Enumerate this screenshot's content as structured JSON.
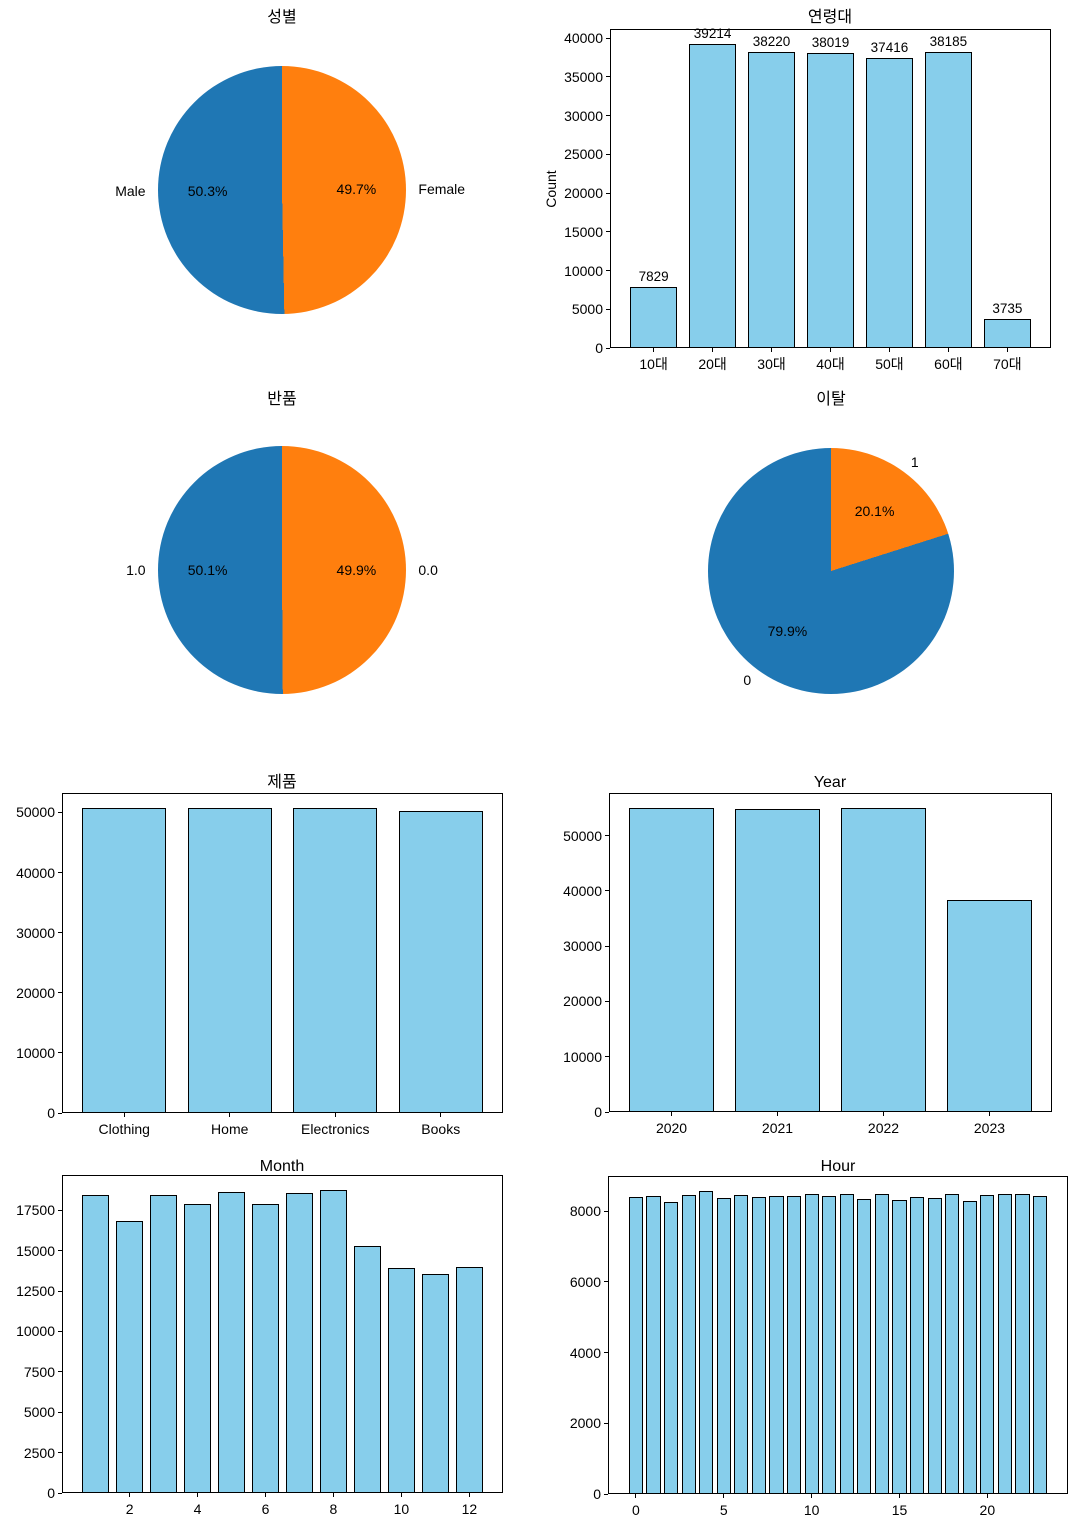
{
  "palette": {
    "blue": "#1f77b4",
    "orange": "#ff7f0e",
    "bar_fill": "#87ceeb",
    "edge": "#000000"
  },
  "chart_data": "see charts",
  "charts": [
    {
      "id": "gender",
      "type": "pie",
      "title": "성별",
      "slices": [
        {
          "label": "Male",
          "pct": 50.3
        },
        {
          "label": "Female",
          "pct": 49.7
        }
      ],
      "start_angle": 90,
      "direction": "counterclockwise"
    },
    {
      "id": "age",
      "type": "bar",
      "title": "연령대",
      "ylabel": "Count",
      "categories": [
        "10대",
        "20대",
        "30대",
        "40대",
        "50대",
        "60대",
        "70대"
      ],
      "values": [
        7829,
        39214,
        38220,
        38019,
        37416,
        38185,
        3735
      ],
      "bar_labels": true,
      "yticks": [
        0,
        5000,
        10000,
        15000,
        20000,
        25000,
        30000,
        35000,
        40000
      ],
      "ylim": [
        0,
        41175
      ]
    },
    {
      "id": "returns",
      "type": "pie",
      "title": "반품",
      "slices": [
        {
          "label": "1.0",
          "pct": 50.1
        },
        {
          "label": "0.0",
          "pct": 49.9
        }
      ],
      "start_angle": 90,
      "direction": "counterclockwise"
    },
    {
      "id": "churn",
      "type": "pie",
      "title": "이탈",
      "slices": [
        {
          "label": "0",
          "pct": 79.9
        },
        {
          "label": "1",
          "pct": 20.1
        }
      ],
      "start_angle": 90,
      "direction": "counterclockwise"
    },
    {
      "id": "product",
      "type": "bar",
      "title": "제품",
      "categories": [
        "Clothing",
        "Home",
        "Electronics",
        "Books"
      ],
      "values": [
        50700,
        50700,
        50700,
        50260
      ],
      "yticks": [
        0,
        10000,
        20000,
        30000,
        40000,
        50000
      ],
      "ylim": [
        0,
        53235
      ]
    },
    {
      "id": "year",
      "type": "bar",
      "title": "Year",
      "categories": [
        "2020",
        "2021",
        "2022",
        "2023"
      ],
      "values": [
        54900,
        54750,
        54950,
        38300
      ],
      "yticks": [
        0,
        10000,
        20000,
        30000,
        40000,
        50000
      ],
      "ylim": [
        0,
        57698
      ]
    },
    {
      "id": "month",
      "type": "bar",
      "title": "Month",
      "x": [
        1,
        2,
        3,
        4,
        5,
        6,
        7,
        8,
        9,
        10,
        11,
        12
      ],
      "values": [
        18450,
        16850,
        18450,
        17900,
        18650,
        17900,
        18550,
        18750,
        15300,
        13950,
        13550,
        14000
      ],
      "xticks": [
        {
          "x": 2,
          "label": "2"
        },
        {
          "x": 4,
          "label": "4"
        },
        {
          "x": 6,
          "label": "6"
        },
        {
          "x": 8,
          "label": "8"
        },
        {
          "x": 10,
          "label": "10"
        },
        {
          "x": 12,
          "label": "12"
        }
      ],
      "yticks": [
        0,
        2500,
        5000,
        7500,
        10000,
        12500,
        15000,
        17500
      ],
      "ylim": [
        0,
        19688
      ]
    },
    {
      "id": "hour",
      "type": "bar",
      "title": "Hour",
      "x": [
        0,
        1,
        2,
        3,
        4,
        5,
        6,
        7,
        8,
        9,
        10,
        11,
        12,
        13,
        14,
        15,
        16,
        17,
        18,
        19,
        20,
        21,
        22,
        23
      ],
      "values": [
        8410,
        8430,
        8270,
        8470,
        8570,
        8380,
        8470,
        8410,
        8420,
        8430,
        8500,
        8430,
        8480,
        8340,
        8500,
        8310,
        8400,
        8390,
        8500,
        8290,
        8470,
        8500,
        8500,
        8420
      ],
      "xticks": [
        {
          "x": 0,
          "label": "0"
        },
        {
          "x": 5,
          "label": "5"
        },
        {
          "x": 10,
          "label": "10"
        },
        {
          "x": 15,
          "label": "15"
        },
        {
          "x": 20,
          "label": "20"
        }
      ],
      "yticks": [
        0,
        2000,
        4000,
        6000,
        8000
      ],
      "ylim": [
        0,
        8999
      ]
    }
  ]
}
